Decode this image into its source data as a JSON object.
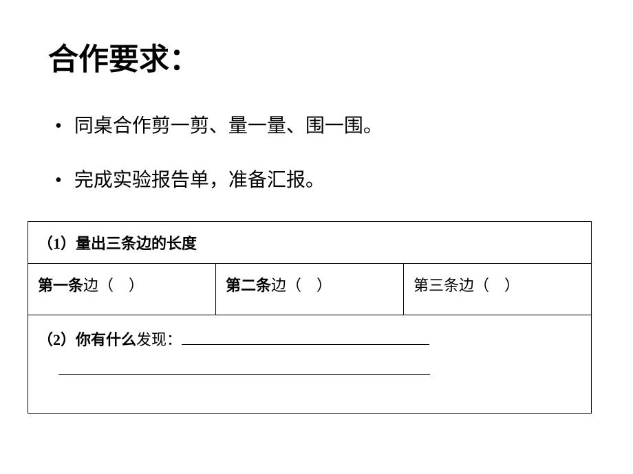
{
  "title": "合作要求：",
  "bullets": [
    "同桌合作剪一剪、量一量、围一围。",
    "完成实验报告单，准备汇报。"
  ],
  "table": {
    "row1": "（1）量出三条边的长度",
    "row2": {
      "c1_bold": "第一条",
      "c1_rest": "边（　）",
      "c2_bold": "第二条",
      "c2_rest": "边（　）",
      "c3": "第三条边（　）"
    },
    "row3_bold": "（2）你有什么",
    "row3_rest": "发现："
  },
  "style": {
    "background": "#ffffff",
    "text_color": "#000000",
    "title_fontsize": 44,
    "body_fontsize": 28,
    "table_fontsize": 22,
    "border_color": "#000000"
  }
}
